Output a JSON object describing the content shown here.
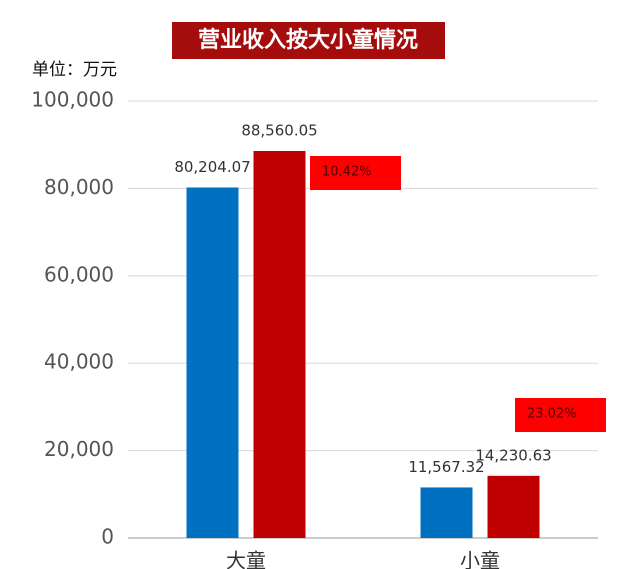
{
  "chart_data": {
    "type": "bar",
    "title": "营业收入按大小童情况",
    "unit_label": "单位：万元",
    "categories": [
      "大童",
      "小童"
    ],
    "series": [
      {
        "color": "#0070c0",
        "values": [
          80204.07,
          11567.32
        ],
        "value_labels": [
          "80,204.07",
          "11,567.32"
        ]
      },
      {
        "color": "#c00000",
        "values": [
          88560.05,
          14230.63
        ],
        "value_labels": [
          "88,560.05",
          "14,230.63"
        ]
      }
    ],
    "annotations": [
      "10.42%",
      "23.02%"
    ],
    "ylim": [
      0,
      100000
    ],
    "yticks": [
      0,
      {
        "value": 20000,
        "label": "20,000"
      },
      {
        "value": 40000,
        "label": "40,000"
      },
      {
        "value": 60000,
        "label": "60,000"
      },
      {
        "value": 80000,
        "label": "80,000"
      },
      {
        "value": 100000,
        "label": "100,000"
      }
    ],
    "grid": true
  }
}
